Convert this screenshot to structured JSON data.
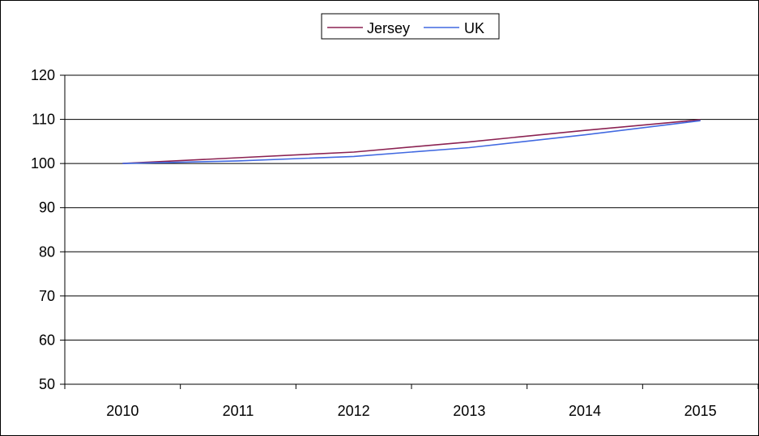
{
  "chart_data": {
    "type": "line",
    "title": "",
    "xlabel": "",
    "ylabel": "",
    "x": [
      "2010",
      "2011",
      "2012",
      "2013",
      "2014",
      "2015"
    ],
    "ylim": [
      50,
      120
    ],
    "yticks": [
      50,
      60,
      70,
      80,
      90,
      100,
      110,
      120
    ],
    "grid": true,
    "legend_position": "top",
    "series": [
      {
        "name": "Jersey",
        "color": "#8b2252",
        "values": [
          100,
          101.3,
          102.6,
          104.9,
          107.5,
          109.9
        ]
      },
      {
        "name": "UK",
        "color": "#4169e1",
        "values": [
          100,
          100.6,
          101.6,
          103.6,
          106.5,
          109.7
        ]
      }
    ]
  }
}
